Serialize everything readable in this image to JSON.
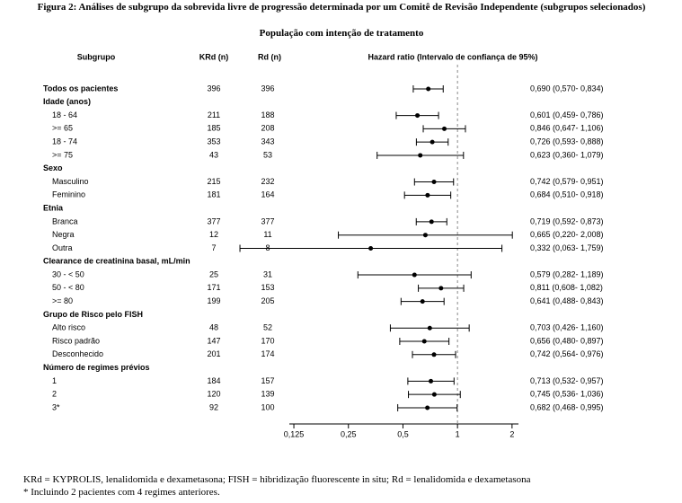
{
  "chart_data": {
    "type": "forest",
    "title": "Figura 2: Análises de subgrupo da sobrevida livre de progressão determinada por um Comitê de Revisão Independente (subgrupos selecionados)",
    "subtitle": "População com intenção de tratamento",
    "columns": [
      "Subgrupo",
      "KRd (n)",
      "Rd (n)",
      "Hazard ratio (Intervalo de confiança de 95%)"
    ],
    "x_log": true,
    "xlim": [
      0.118,
      2.17
    ],
    "xticks": [
      {
        "value": 0.125,
        "label": "0,125"
      },
      {
        "value": 0.25,
        "label": "0,25"
      },
      {
        "value": 0.5,
        "label": "0,5"
      },
      1,
      2
    ],
    "reference": 1,
    "rows": [
      {
        "label": "Todos os pacientes",
        "krd": 396,
        "rd": 396,
        "hr": 0.69,
        "ci": [
          0.57,
          0.834
        ],
        "hr_label": "0,690 (0,570- 0,834)"
      },
      {
        "label": "Idade (anos)"
      },
      {
        "label": "18 - 64",
        "krd": 211,
        "rd": 188,
        "hr": 0.601,
        "ci": [
          0.459,
          0.786
        ],
        "hr_label": "0,601 (0,459- 0,786)"
      },
      {
        "label": ">= 65",
        "krd": 185,
        "rd": 208,
        "hr": 0.846,
        "ci": [
          0.647,
          1.106
        ],
        "hr_label": "0,846 (0,647- 1,106)"
      },
      {
        "label": "18 - 74",
        "krd": 353,
        "rd": 343,
        "hr": 0.726,
        "ci": [
          0.593,
          0.888
        ],
        "hr_label": "0,726 (0,593- 0,888)"
      },
      {
        "label": ">= 75",
        "krd": 43,
        "rd": 53,
        "hr": 0.623,
        "ci": [
          0.36,
          1.079
        ],
        "hr_label": "0,623 (0,360- 1,079)"
      },
      {
        "label": "Sexo"
      },
      {
        "label": "Masculino",
        "krd": 215,
        "rd": 232,
        "hr": 0.742,
        "ci": [
          0.579,
          0.951
        ],
        "hr_label": "0,742 (0,579- 0,951)"
      },
      {
        "label": "Feminino",
        "krd": 181,
        "rd": 164,
        "hr": 0.684,
        "ci": [
          0.51,
          0.918
        ],
        "hr_label": "0,684 (0,510- 0,918)"
      },
      {
        "label": "Etnia"
      },
      {
        "label": "Branca",
        "krd": 377,
        "rd": 377,
        "hr": 0.719,
        "ci": [
          0.592,
          0.873
        ],
        "hr_label": "0,719 (0,592- 0,873)"
      },
      {
        "label": "Negra",
        "krd": 12,
        "rd": 11,
        "hr": 0.665,
        "ci": [
          0.22,
          2.008
        ],
        "hr_label": "0,665 (0,220- 2,008)"
      },
      {
        "label": "Outra",
        "krd": 7,
        "rd": 8,
        "hr": 0.332,
        "ci": [
          0.063,
          1.759
        ],
        "hr_label": "0,332 (0,063- 1,759)"
      },
      {
        "label": "Clearance de creatinina basal, mL/min"
      },
      {
        "label": "30 - < 50",
        "krd": 25,
        "rd": 31,
        "hr": 0.579,
        "ci": [
          0.282,
          1.189
        ],
        "hr_label": "0,579 (0,282- 1,189)"
      },
      {
        "label": "50 - < 80",
        "krd": 171,
        "rd": 153,
        "hr": 0.811,
        "ci": [
          0.608,
          1.082
        ],
        "hr_label": "0,811 (0,608- 1,082)"
      },
      {
        "label": ">= 80",
        "krd": 199,
        "rd": 205,
        "hr": 0.641,
        "ci": [
          0.488,
          0.843
        ],
        "hr_label": "0,641 (0,488- 0,843)"
      },
      {
        "label": "Grupo de Risco pelo FISH"
      },
      {
        "label": "Alto risco",
        "krd": 48,
        "rd": 52,
        "hr": 0.703,
        "ci": [
          0.426,
          1.16
        ],
        "hr_label": "0,703 (0,426- 1,160)"
      },
      {
        "label": "Risco padrão",
        "krd": 147,
        "rd": 170,
        "hr": 0.656,
        "ci": [
          0.48,
          0.897
        ],
        "hr_label": "0,656 (0,480- 0,897)"
      },
      {
        "label": "Desconhecido",
        "krd": 201,
        "rd": 174,
        "hr": 0.742,
        "ci": [
          0.564,
          0.976
        ],
        "hr_label": "0,742 (0,564- 0,976)"
      },
      {
        "label": "Número de regimes prévios"
      },
      {
        "label": "1",
        "krd": 184,
        "rd": 157,
        "hr": 0.713,
        "ci": [
          0.532,
          0.957
        ],
        "hr_label": "0,713 (0,532- 0,957)"
      },
      {
        "label": "2",
        "krd": 120,
        "rd": 139,
        "hr": 0.745,
        "ci": [
          0.536,
          1.036
        ],
        "hr_label": "0,745 (0,536- 1,036)"
      },
      {
        "label": "3*",
        "krd": 92,
        "rd": 100,
        "hr": 0.682,
        "ci": [
          0.468,
          0.995
        ],
        "hr_label": "0,682 (0,468- 0,995)"
      }
    ],
    "footnotes": [
      "KRd = KYPROLIS, lenalidomida e dexametasona; FISH = hibridização fluorescente in situ; Rd = lenalidomida e dexametasona",
      "* Incluindo 2 pacientes com 4 regimes anteriores."
    ]
  }
}
